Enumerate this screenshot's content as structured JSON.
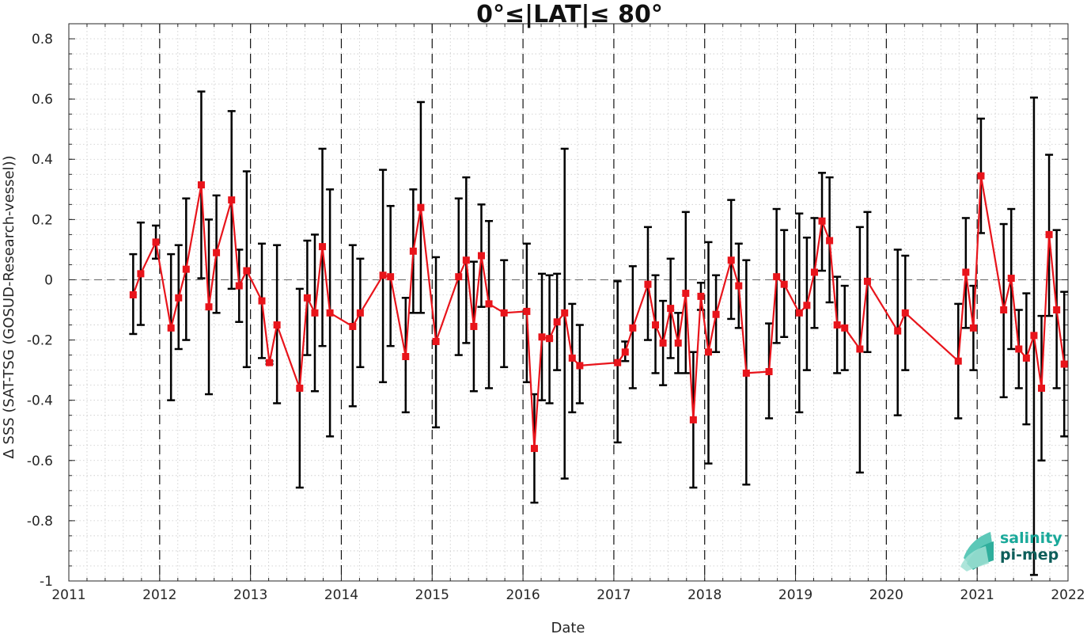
{
  "chart_data": {
    "type": "line",
    "title": "0°≤|LAT|≤ 80°",
    "xlabel": "Date",
    "ylabel": "Δ SSS (SAT-TSG (GOSUD-Research-vessel))",
    "xlim": [
      2011,
      2022
    ],
    "ylim": [
      -1,
      0.85
    ],
    "xticks": [
      "2011",
      "2012",
      "2013",
      "2014",
      "2015",
      "2016",
      "2017",
      "2018",
      "2019",
      "2020",
      "2021",
      "2022"
    ],
    "yticks": [
      "-1",
      "-0.8",
      "-0.6",
      "-0.4",
      "-0.2",
      "0",
      "0.2",
      "0.4",
      "0.6",
      "0.8"
    ],
    "grid": "minor dotted",
    "year_separators": "dashed",
    "zero_line": "dashed",
    "series": [
      {
        "style": "red line with square markers and black error bars",
        "color": "#e8141b",
        "errorbar_color": "#000000",
        "points": [
          {
            "x": "2011-09",
            "y": -0.05,
            "lo": -0.18,
            "hi": 0.085
          },
          {
            "x": "2011-10",
            "y": 0.02,
            "lo": -0.15,
            "hi": 0.19
          },
          {
            "x": "2011-12",
            "y": 0.125,
            "lo": 0.07,
            "hi": 0.18
          },
          {
            "x": "2012-02",
            "y": -0.16,
            "lo": -0.4,
            "hi": 0.085
          },
          {
            "x": "2012-03",
            "y": -0.06,
            "lo": -0.23,
            "hi": 0.115
          },
          {
            "x": "2012-04",
            "y": 0.035,
            "lo": -0.2,
            "hi": 0.27
          },
          {
            "x": "2012-06",
            "y": 0.315,
            "lo": 0.005,
            "hi": 0.625
          },
          {
            "x": "2012-07",
            "y": -0.09,
            "lo": -0.38,
            "hi": 0.2
          },
          {
            "x": "2012-08",
            "y": 0.09,
            "lo": -0.11,
            "hi": 0.28
          },
          {
            "x": "2012-10",
            "y": 0.265,
            "lo": -0.03,
            "hi": 0.56
          },
          {
            "x": "2012-11",
            "y": -0.02,
            "lo": -0.14,
            "hi": 0.1
          },
          {
            "x": "2012-12",
            "y": 0.03,
            "lo": -0.29,
            "hi": 0.36
          },
          {
            "x": "2013-02",
            "y": -0.07,
            "lo": -0.26,
            "hi": 0.12
          },
          {
            "x": "2013-03",
            "y": -0.275,
            "lo": -0.28,
            "hi": -0.27
          },
          {
            "x": "2013-04",
            "y": -0.15,
            "lo": -0.41,
            "hi": 0.115
          },
          {
            "x": "2013-07",
            "y": -0.36,
            "lo": -0.69,
            "hi": -0.03
          },
          {
            "x": "2013-08",
            "y": -0.06,
            "lo": -0.25,
            "hi": 0.13
          },
          {
            "x": "2013-09",
            "y": -0.11,
            "lo": -0.37,
            "hi": 0.15
          },
          {
            "x": "2013-10",
            "y": 0.11,
            "lo": -0.22,
            "hi": 0.435
          },
          {
            "x": "2013-11",
            "y": -0.11,
            "lo": -0.52,
            "hi": 0.3
          },
          {
            "x": "2014-02",
            "y": -0.155,
            "lo": -0.42,
            "hi": 0.115
          },
          {
            "x": "2014-03",
            "y": -0.11,
            "lo": -0.29,
            "hi": 0.07
          },
          {
            "x": "2014-06",
            "y": 0.015,
            "lo": -0.34,
            "hi": 0.365
          },
          {
            "x": "2014-07",
            "y": 0.01,
            "lo": -0.22,
            "hi": 0.245
          },
          {
            "x": "2014-09",
            "y": -0.255,
            "lo": -0.44,
            "hi": -0.06
          },
          {
            "x": "2014-10",
            "y": 0.095,
            "lo": -0.11,
            "hi": 0.3
          },
          {
            "x": "2014-11",
            "y": 0.24,
            "lo": -0.11,
            "hi": 0.59
          },
          {
            "x": "2015-01",
            "y": -0.205,
            "lo": -0.49,
            "hi": 0.075
          },
          {
            "x": "2015-04",
            "y": 0.01,
            "lo": -0.25,
            "hi": 0.27
          },
          {
            "x": "2015-05",
            "y": 0.065,
            "lo": -0.21,
            "hi": 0.34
          },
          {
            "x": "2015-06",
            "y": -0.155,
            "lo": -0.37,
            "hi": 0.06
          },
          {
            "x": "2015-07",
            "y": 0.08,
            "lo": -0.09,
            "hi": 0.25
          },
          {
            "x": "2015-08",
            "y": -0.08,
            "lo": -0.36,
            "hi": 0.195
          },
          {
            "x": "2015-10",
            "y": -0.11,
            "lo": -0.29,
            "hi": 0.065
          },
          {
            "x": "2016-01",
            "y": -0.105,
            "lo": -0.34,
            "hi": 0.12
          },
          {
            "x": "2016-02",
            "y": -0.56,
            "lo": -0.74,
            "hi": -0.38
          },
          {
            "x": "2016-03",
            "y": -0.19,
            "lo": -0.4,
            "hi": 0.02
          },
          {
            "x": "2016-04",
            "y": -0.195,
            "lo": -0.41,
            "hi": 0.015
          },
          {
            "x": "2016-05",
            "y": -0.14,
            "lo": -0.3,
            "hi": 0.02
          },
          {
            "x": "2016-06",
            "y": -0.11,
            "lo": -0.66,
            "hi": 0.435
          },
          {
            "x": "2016-07",
            "y": -0.26,
            "lo": -0.44,
            "hi": -0.08
          },
          {
            "x": "2016-08",
            "y": -0.285,
            "lo": -0.41,
            "hi": -0.15
          },
          {
            "x": "2017-01",
            "y": -0.275,
            "lo": -0.54,
            "hi": -0.005
          },
          {
            "x": "2017-02",
            "y": -0.24,
            "lo": -0.27,
            "hi": -0.205
          },
          {
            "x": "2017-03",
            "y": -0.16,
            "lo": -0.36,
            "hi": 0.045
          },
          {
            "x": "2017-05",
            "y": -0.015,
            "lo": -0.2,
            "hi": 0.175
          },
          {
            "x": "2017-06",
            "y": -0.15,
            "lo": -0.31,
            "hi": 0.015
          },
          {
            "x": "2017-07",
            "y": -0.21,
            "lo": -0.35,
            "hi": -0.07
          },
          {
            "x": "2017-08",
            "y": -0.095,
            "lo": -0.26,
            "hi": 0.07
          },
          {
            "x": "2017-09",
            "y": -0.21,
            "lo": -0.31,
            "hi": -0.11
          },
          {
            "x": "2017-10",
            "y": -0.045,
            "lo": -0.31,
            "hi": 0.225
          },
          {
            "x": "2017-11",
            "y": -0.465,
            "lo": -0.69,
            "hi": -0.24
          },
          {
            "x": "2017-12",
            "y": -0.055,
            "lo": -0.1,
            "hi": -0.01
          },
          {
            "x": "2018-01",
            "y": -0.24,
            "lo": -0.61,
            "hi": 0.125
          },
          {
            "x": "2018-02",
            "y": -0.115,
            "lo": -0.24,
            "hi": 0.015
          },
          {
            "x": "2018-04",
            "y": 0.065,
            "lo": -0.13,
            "hi": 0.265
          },
          {
            "x": "2018-05",
            "y": -0.02,
            "lo": -0.16,
            "hi": 0.12
          },
          {
            "x": "2018-06",
            "y": -0.31,
            "lo": -0.68,
            "hi": 0.065
          },
          {
            "x": "2018-09",
            "y": -0.305,
            "lo": -0.46,
            "hi": -0.145
          },
          {
            "x": "2018-10",
            "y": 0.01,
            "lo": -0.21,
            "hi": 0.235
          },
          {
            "x": "2018-11",
            "y": -0.015,
            "lo": -0.19,
            "hi": 0.165
          },
          {
            "x": "2019-01",
            "y": -0.11,
            "lo": -0.44,
            "hi": 0.22
          },
          {
            "x": "2019-02",
            "y": -0.085,
            "lo": -0.3,
            "hi": 0.14
          },
          {
            "x": "2019-03",
            "y": 0.025,
            "lo": -0.16,
            "hi": 0.205
          },
          {
            "x": "2019-04",
            "y": 0.195,
            "lo": 0.03,
            "hi": 0.355
          },
          {
            "x": "2019-05",
            "y": 0.13,
            "lo": -0.075,
            "hi": 0.34
          },
          {
            "x": "2019-06",
            "y": -0.15,
            "lo": -0.31,
            "hi": 0.01
          },
          {
            "x": "2019-07",
            "y": -0.16,
            "lo": -0.3,
            "hi": -0.02
          },
          {
            "x": "2019-09",
            "y": -0.23,
            "lo": -0.64,
            "hi": 0.175
          },
          {
            "x": "2019-10",
            "y": -0.005,
            "lo": -0.24,
            "hi": 0.225
          },
          {
            "x": "2020-02",
            "y": -0.17,
            "lo": -0.45,
            "hi": 0.1
          },
          {
            "x": "2020-03",
            "y": -0.11,
            "lo": -0.3,
            "hi": 0.08
          },
          {
            "x": "2020-10",
            "y": -0.27,
            "lo": -0.46,
            "hi": -0.08
          },
          {
            "x": "2020-11",
            "y": 0.025,
            "lo": -0.16,
            "hi": 0.205
          },
          {
            "x": "2020-12",
            "y": -0.16,
            "lo": -0.3,
            "hi": -0.02
          },
          {
            "x": "2021-01",
            "y": 0.345,
            "lo": 0.155,
            "hi": 0.535
          },
          {
            "x": "2021-04",
            "y": -0.1,
            "lo": -0.39,
            "hi": 0.185
          },
          {
            "x": "2021-05",
            "y": 0.005,
            "lo": -0.23,
            "hi": 0.235
          },
          {
            "x": "2021-06",
            "y": -0.23,
            "lo": -0.36,
            "hi": -0.1
          },
          {
            "x": "2021-07",
            "y": -0.26,
            "lo": -0.48,
            "hi": -0.045
          },
          {
            "x": "2021-08",
            "y": -0.185,
            "lo": -0.98,
            "hi": 0.605
          },
          {
            "x": "2021-09",
            "y": -0.36,
            "lo": -0.6,
            "hi": -0.12
          },
          {
            "x": "2021-10",
            "y": 0.15,
            "lo": -0.12,
            "hi": 0.415
          },
          {
            "x": "2021-11",
            "y": -0.1,
            "lo": -0.36,
            "hi": 0.165
          },
          {
            "x": "2021-12",
            "y": -0.28,
            "lo": -0.52,
            "hi": -0.04
          }
        ]
      }
    ]
  },
  "logo": {
    "line1": "salinity",
    "line2": "pi-mep",
    "colors": {
      "primary": "#1aa99a",
      "dark": "#0d5e5a"
    }
  }
}
